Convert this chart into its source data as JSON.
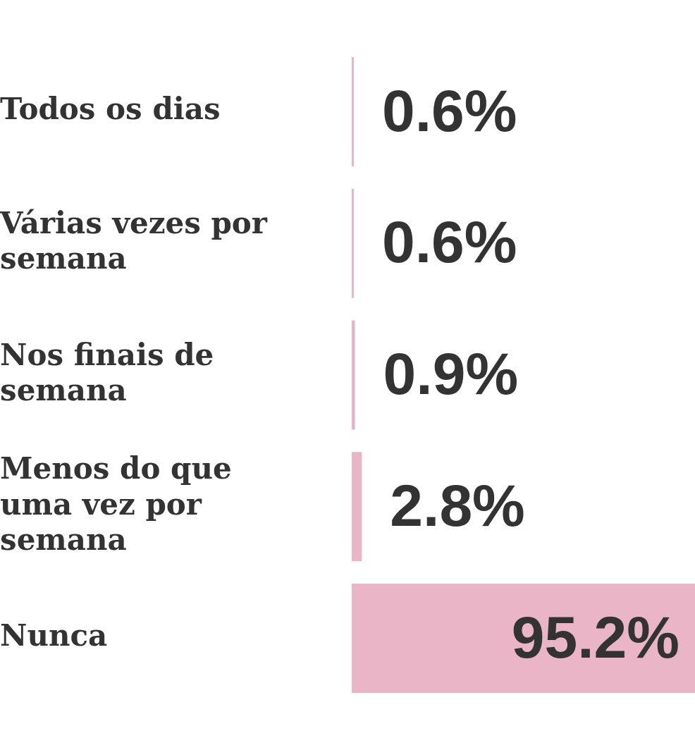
{
  "chart_data": {
    "type": "bar",
    "orientation": "horizontal",
    "categories": [
      "Todos os dias",
      "Várias vezes por semana",
      "Nos finais de semana",
      "Menos do que uma vez por semana",
      "Nunca"
    ],
    "values": [
      0.6,
      0.6,
      0.9,
      2.8,
      95.2
    ],
    "value_labels": [
      "0.6%",
      "0.6%",
      "0.9%",
      "2.8%",
      "95.2%"
    ],
    "color": "#ebb5c8"
  }
}
